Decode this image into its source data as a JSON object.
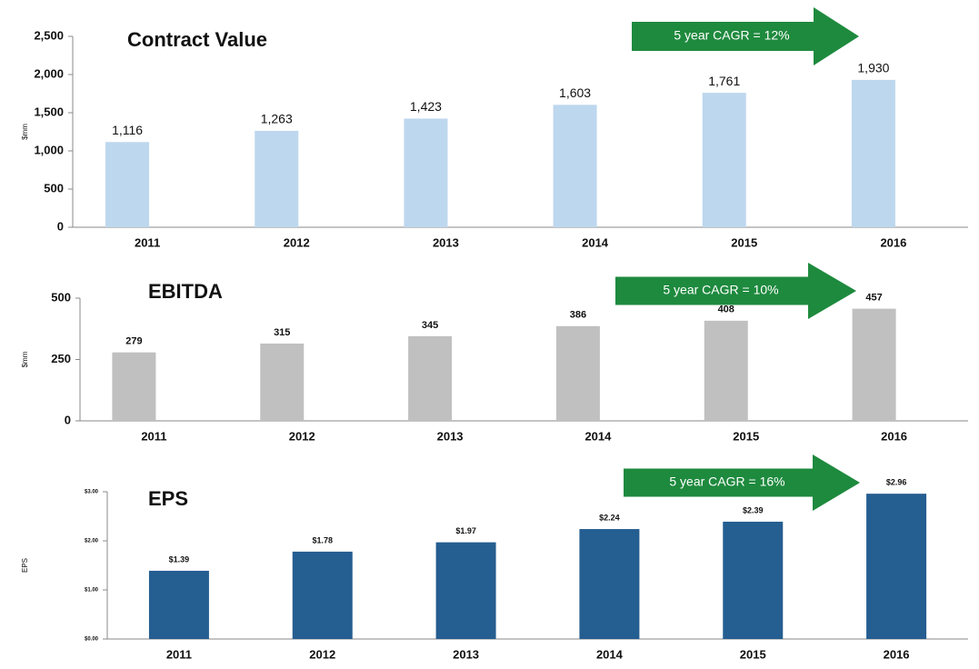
{
  "chart_data": [
    {
      "type": "bar",
      "title": "Contract Value",
      "y_label": "$mm",
      "annotation": "5 year CAGR = 12%",
      "categories": [
        "2011",
        "2012",
        "2013",
        "2014",
        "2015",
        "2016"
      ],
      "values": [
        1116,
        1263,
        1423,
        1603,
        1761,
        1930
      ],
      "value_labels": [
        "1,116",
        "1,263",
        "1,423",
        "1,603",
        "1,761",
        "1,930"
      ],
      "color": "#bdd7ee",
      "ylim": [
        0,
        2500
      ],
      "yticks": [
        0,
        500,
        {
          "value": 1000,
          "label": "1,000"
        },
        {
          "value": 1500,
          "label": "1,500"
        },
        {
          "value": 2000,
          "label": "2,000"
        },
        {
          "value": 2500,
          "label": "2,500"
        }
      ]
    },
    {
      "type": "bar",
      "title": "EBITDA",
      "y_label": "$mm",
      "annotation": "5 year CAGR = 10%",
      "categories": [
        "2011",
        "2012",
        "2013",
        "2014",
        "2015",
        "2016"
      ],
      "values": [
        279,
        315,
        345,
        386,
        408,
        457
      ],
      "color": "#c0c0c0",
      "ylim": [
        0,
        500
      ],
      "yticks": [
        0,
        250,
        500
      ]
    },
    {
      "type": "bar",
      "title": "EPS",
      "y_label": "EPS",
      "annotation": "5 year CAGR = 16%",
      "categories": [
        "2011",
        "2012",
        "2013",
        "2014",
        "2015",
        "2016"
      ],
      "values": [
        1.39,
        1.78,
        1.97,
        2.24,
        2.39,
        2.96
      ],
      "value_labels": [
        "$1.39",
        "$1.78",
        "$1.97",
        "$2.24",
        "$2.39",
        "$2.96"
      ],
      "color": "#255e91",
      "ylim": [
        0,
        3
      ],
      "yticks": [
        {
          "value": 0,
          "label": "$0.00"
        },
        {
          "value": 1,
          "label": "$1.00"
        },
        {
          "value": 2,
          "label": "$2.00"
        },
        {
          "value": 3,
          "label": "$3.00"
        }
      ]
    }
  ]
}
